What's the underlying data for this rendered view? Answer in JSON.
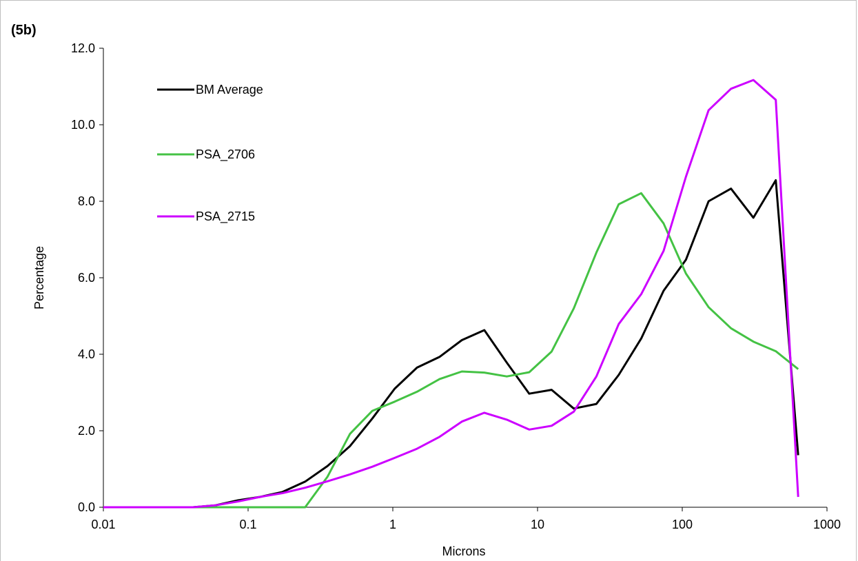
{
  "chart_data": {
    "type": "line",
    "panel_label": "(5b)",
    "xlabel": "Microns",
    "ylabel": "Percentage",
    "xscale": "log",
    "xlim": [
      0.01,
      1000
    ],
    "ylim": [
      0,
      12
    ],
    "x_ticks": [
      "0.01",
      "0.1",
      "1",
      "10",
      "100",
      "1000"
    ],
    "y_ticks": [
      "0.0",
      "2.0",
      "4.0",
      "6.0",
      "8.0",
      "10.0",
      "12.0"
    ],
    "grid": false,
    "legend_position": "top-left",
    "x": [
      0.01,
      0.0143,
      0.0204,
      0.0292,
      0.0416,
      0.0595,
      0.085,
      0.121,
      0.173,
      0.248,
      0.354,
      0.506,
      0.722,
      1.03,
      1.47,
      2.1,
      3.0,
      4.29,
      6.13,
      8.76,
      12.5,
      17.8,
      25.5,
      36.4,
      52.0,
      74.3,
      106,
      152,
      217,
      310,
      443,
      632
    ],
    "series": [
      {
        "name": "BM Average",
        "color": "#000000",
        "values": [
          0.0,
          0.0,
          0.0,
          0.0,
          0.0,
          0.05,
          0.18,
          0.27,
          0.4,
          0.67,
          1.08,
          1.6,
          2.32,
          3.1,
          3.65,
          3.93,
          4.37,
          4.63,
          3.78,
          2.97,
          3.07,
          2.58,
          2.7,
          3.46,
          4.41,
          5.66,
          6.47,
          8.0,
          8.33,
          7.57,
          8.55,
          1.36
        ]
      },
      {
        "name": "PSA_2706",
        "color": "#44c244",
        "values": [
          0.0,
          0.0,
          0.0,
          0.0,
          0.0,
          0.0,
          0.0,
          0.0,
          0.0,
          0.0,
          0.8,
          1.92,
          2.52,
          2.76,
          3.02,
          3.35,
          3.55,
          3.52,
          3.42,
          3.53,
          4.07,
          5.2,
          6.66,
          7.92,
          8.21,
          7.42,
          6.11,
          5.23,
          4.68,
          4.33,
          4.08,
          3.61
        ]
      },
      {
        "name": "PSA_2715",
        "color": "#cc00ff",
        "values": [
          0.0,
          0.0,
          0.0,
          0.0,
          0.0,
          0.05,
          0.15,
          0.27,
          0.37,
          0.51,
          0.68,
          0.86,
          1.06,
          1.29,
          1.53,
          1.84,
          2.24,
          2.47,
          2.29,
          2.03,
          2.13,
          2.5,
          3.42,
          4.79,
          5.57,
          6.7,
          8.64,
          10.38,
          10.94,
          11.17,
          10.65,
          0.27
        ]
      }
    ]
  }
}
